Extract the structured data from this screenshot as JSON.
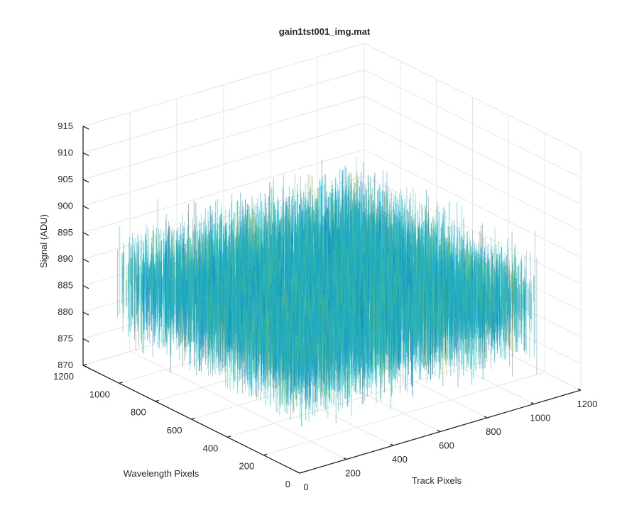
{
  "chart_data": {
    "type": "surface",
    "title": "gain1tst001_img.mat",
    "xlabel": "Track Pixels",
    "ylabel": "Wavelength Pixels",
    "zlabel": "Signal (ADU)",
    "xlim": [
      0,
      1200
    ],
    "ylim": [
      0,
      1200
    ],
    "zlim": [
      870,
      915
    ],
    "x_ticks": [
      0,
      200,
      400,
      600,
      800,
      1000,
      1200
    ],
    "y_ticks": [
      0,
      200,
      400,
      600,
      800,
      1000,
      1200
    ],
    "z_ticks": [
      870,
      875,
      880,
      885,
      890,
      895,
      900,
      905,
      910,
      915
    ],
    "x_tick_labels": [
      "0",
      "200",
      "400",
      "600",
      "800",
      "1000",
      "1200"
    ],
    "y_tick_labels": [
      "0",
      "200",
      "400",
      "600",
      "800",
      "1000",
      "1200"
    ],
    "z_tick_labels": [
      "870",
      "875",
      "880",
      "885",
      "890",
      "895",
      "900",
      "905",
      "910",
      "915"
    ],
    "data_extent": {
      "x": [
        0,
        1024
      ],
      "y": [
        0,
        1024
      ]
    },
    "surface_mean_signal": 889,
    "surface_noise_range": [
      878,
      908
    ],
    "colormap": [
      "#0072bd",
      "#0d90c8",
      "#1aa8c8",
      "#2bb5b0",
      "#48bd8c",
      "#7fbe5d",
      "#bcbd3e",
      "#e8c23a"
    ],
    "grid": true,
    "view": "3d-perspective"
  }
}
